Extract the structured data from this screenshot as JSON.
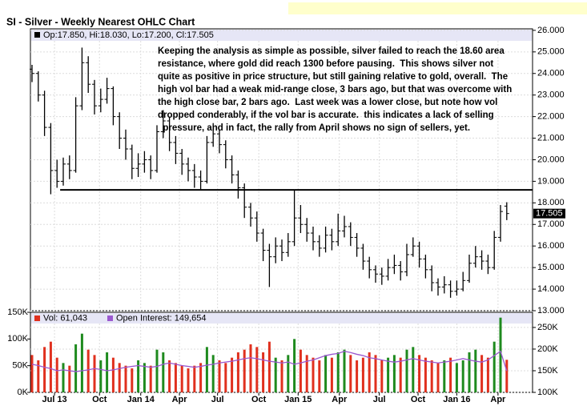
{
  "chart_data": [
    {
      "type": "ohlc",
      "title": "SI - Silver - Weekly Nearest OHLC Chart",
      "legend_text": "Op:17.850, Hi:18.030, Lo:17.200, Cl:17.505",
      "annotation": [
        "Keeping the analysis as simple as possible, silver failed to reach the 18.60 area",
        "resistance, where gold did reach 1300 before pausing.  This shows silver not",
        "quite as positive in price structure, but still gaining relative to gold, overall.  The",
        "high vol bar had a weak mid-range close, 3 bars ago, but that was overcome with",
        "the high close bar, 2 bars ago.  Last week was a lower close, but note how vol",
        "dropped conderably, if the vol bar is accurate.  this indicates a lack of selling",
        "  pressure, and in fact, the rally from April shows no sign of sellers, yet."
      ],
      "resistance": 18.6,
      "color": "#000000",
      "open": [
        24.2,
        24.0,
        23.0,
        21.5,
        19.5,
        19.0,
        19.8,
        19.5,
        22.5,
        24.5,
        23.5,
        22.5,
        22.8,
        23.3,
        22.0,
        21.0,
        20.5,
        19.6,
        19.8,
        20.0,
        19.5,
        21.3,
        21.8,
        20.8,
        20.3,
        19.8,
        19.5,
        19.2,
        19.0,
        20.8,
        21.2,
        20.7,
        20.0,
        19.3,
        18.7,
        17.8,
        17.3,
        16.6,
        15.8,
        15.5,
        16.0,
        15.7,
        16.2,
        17.3,
        17.0,
        16.6,
        16.2,
        15.9,
        16.5,
        16.2,
        16.7,
        16.9,
        16.4,
        15.9,
        15.3,
        14.9,
        14.7,
        14.6,
        15.0,
        15.1,
        14.8,
        15.6,
        16.0,
        15.4,
        14.9,
        14.3,
        14.1,
        14.2,
        13.9,
        14.0,
        14.4,
        15.2,
        15.5,
        15.3,
        15.0,
        16.4,
        17.85
      ],
      "high": [
        24.4,
        24.1,
        23.2,
        21.7,
        20.0,
        20.1,
        20.2,
        22.9,
        25.2,
        24.8,
        23.7,
        23.3,
        23.8,
        23.4,
        22.2,
        21.4,
        20.7,
        20.3,
        20.4,
        20.2,
        21.6,
        22.3,
        22.0,
        21.1,
        20.5,
        20.1,
        19.8,
        19.5,
        21.1,
        21.7,
        21.4,
        20.9,
        20.2,
        19.5,
        18.9,
        18.0,
        17.6,
        16.8,
        16.1,
        16.4,
        16.3,
        16.6,
        18.6,
        17.9,
        17.3,
        16.9,
        16.5,
        16.9,
        16.8,
        17.5,
        17.4,
        17.1,
        16.6,
        16.1,
        15.5,
        15.1,
        15.0,
        15.4,
        15.6,
        15.3,
        16.1,
        16.4,
        16.2,
        15.6,
        15.1,
        14.5,
        14.6,
        14.4,
        14.4,
        14.8,
        15.6,
        16.0,
        15.8,
        15.6,
        16.7,
        17.9,
        18.03
      ],
      "low": [
        23.6,
        22.7,
        21.1,
        18.4,
        18.7,
        18.8,
        19.1,
        19.4,
        22.3,
        23.1,
        22.1,
        22.2,
        22.6,
        21.6,
        20.5,
        20.0,
        19.1,
        19.2,
        19.4,
        19.1,
        19.4,
        21.0,
        20.4,
        19.8,
        19.3,
        19.0,
        18.7,
        18.6,
        18.9,
        20.6,
        20.3,
        19.6,
        18.9,
        18.2,
        17.3,
        16.9,
        16.2,
        15.3,
        14.1,
        15.2,
        15.3,
        15.5,
        16.0,
        16.6,
        16.2,
        15.8,
        15.5,
        15.7,
        15.8,
        16.0,
        16.4,
        16.0,
        15.5,
        14.9,
        14.5,
        14.3,
        14.2,
        14.4,
        14.7,
        14.4,
        14.6,
        15.5,
        15.0,
        14.5,
        13.9,
        13.7,
        13.8,
        13.6,
        13.7,
        13.9,
        14.3,
        15.0,
        14.9,
        14.7,
        14.9,
        16.2,
        17.2
      ],
      "close": [
        24.0,
        23.0,
        21.5,
        19.5,
        19.0,
        19.8,
        19.5,
        22.5,
        24.5,
        23.5,
        22.5,
        22.8,
        23.3,
        22.0,
        21.0,
        20.5,
        19.6,
        19.8,
        20.0,
        19.5,
        21.3,
        21.8,
        20.8,
        20.3,
        19.8,
        19.5,
        19.2,
        19.0,
        20.8,
        21.2,
        20.7,
        20.0,
        19.3,
        18.7,
        17.8,
        17.3,
        16.6,
        15.8,
        15.5,
        16.0,
        15.7,
        16.2,
        17.3,
        17.0,
        16.6,
        16.2,
        15.9,
        16.5,
        16.2,
        16.7,
        16.9,
        16.4,
        15.9,
        15.3,
        14.9,
        14.7,
        14.6,
        15.0,
        15.1,
        14.8,
        15.6,
        16.0,
        15.4,
        14.9,
        14.3,
        14.1,
        14.2,
        13.9,
        14.0,
        14.4,
        15.2,
        15.5,
        15.3,
        15.0,
        16.4,
        17.6,
        17.505
      ],
      "ylim": [
        13,
        26.07
      ],
      "yticks": [
        {
          "value": 13,
          "label": "13.000"
        },
        {
          "value": 14,
          "label": "14.000"
        },
        {
          "value": 15,
          "label": "15.000"
        },
        {
          "value": 16,
          "label": "16.000"
        },
        {
          "value": 17,
          "label": "17.000"
        },
        {
          "value": 18,
          "label": "18.000"
        },
        {
          "value": 19,
          "label": "19.000"
        },
        {
          "value": 20,
          "label": "20.000"
        },
        {
          "value": 21,
          "label": "21.000"
        },
        {
          "value": 22,
          "label": "22.000"
        },
        {
          "value": 23,
          "label": "23.000"
        },
        {
          "value": 24,
          "label": "24.000"
        },
        {
          "value": 25,
          "label": "25.000"
        },
        {
          "value": 26,
          "label": "26.000"
        }
      ]
    },
    {
      "type": "bar",
      "up_color": "#1e8a1e",
      "down_color": "#e0301e",
      "series": [
        {
          "name": "Vol: 61,043",
          "color": "#e0301e",
          "values": [
            70000,
            60000,
            85000,
            95000,
            65000,
            55000,
            50000,
            90000,
            110000,
            80000,
            70000,
            60000,
            75000,
            65000,
            55000,
            50000,
            45000,
            60000,
            55000,
            50000,
            80000,
            75000,
            60000,
            55000,
            50000,
            45000,
            50000,
            55000,
            85000,
            70000,
            60000,
            55000,
            65000,
            75000,
            80000,
            90000,
            85000,
            75000,
            95000,
            65000,
            60000,
            70000,
            100000,
            80000,
            70000,
            65000,
            60000,
            70000,
            65000,
            75000,
            80000,
            70000,
            60000,
            65000,
            75000,
            70000,
            60000,
            65000,
            70000,
            65000,
            80000,
            85000,
            70000,
            65000,
            60000,
            55000,
            60000,
            65000,
            55000,
            60000,
            75000,
            80000,
            70000,
            65000,
            95000,
            140000,
            61043
          ]
        },
        {
          "name": "Open Interest: 149,654",
          "color": "#9b59d0",
          "axis": "y2",
          "values": [
            165000,
            162000,
            158000,
            155000,
            150000,
            152000,
            150000,
            148000,
            150000,
            152000,
            155000,
            153000,
            150000,
            152000,
            155000,
            158000,
            160000,
            162000,
            160000,
            158000,
            160000,
            165000,
            168000,
            165000,
            162000,
            160000,
            158000,
            160000,
            163000,
            165000,
            168000,
            170000,
            172000,
            175000,
            178000,
            180000,
            178000,
            175000,
            172000,
            170000,
            168000,
            170000,
            165000,
            168000,
            172000,
            175000,
            180000,
            185000,
            188000,
            190000,
            195000,
            192000,
            188000,
            185000,
            180000,
            178000,
            175000,
            172000,
            170000,
            172000,
            175000,
            178000,
            175000,
            172000,
            170000,
            168000,
            170000,
            172000,
            175000,
            178000,
            175000,
            172000,
            170000,
            175000,
            185000,
            195000,
            149654
          ]
        }
      ],
      "ylim": [
        0,
        150000
      ],
      "yticks": [
        {
          "value": 0,
          "label": "0K"
        },
        {
          "value": 50000,
          "label": "50K"
        },
        {
          "value": 100000,
          "label": "100K"
        },
        {
          "value": 150000,
          "label": "150K"
        }
      ],
      "y2lim": [
        100000,
        285000
      ],
      "y2ticks": [
        {
          "value": 100000,
          "label": "100K"
        },
        {
          "value": 150000,
          "label": "150K"
        },
        {
          "value": 200000,
          "label": "200K"
        },
        {
          "value": 250000,
          "label": "250K"
        }
      ],
      "xticks": [
        {
          "value": 3.6,
          "label": "Jul 13"
        },
        {
          "value": 10.8,
          "label": "Oct"
        },
        {
          "value": 17.4,
          "label": "Jan 14"
        },
        {
          "value": 23.6,
          "label": "Apr"
        },
        {
          "value": 29.7,
          "label": "Jul"
        },
        {
          "value": 36.3,
          "label": "Oct"
        },
        {
          "value": 42.6,
          "label": "Jan 15"
        },
        {
          "value": 49.2,
          "label": "Apr"
        },
        {
          "value": 55.6,
          "label": "Jul"
        },
        {
          "value": 61.8,
          "label": "Oct"
        },
        {
          "value": 68,
          "label": "Jan 16"
        },
        {
          "value": 74.6,
          "label": "Apr"
        }
      ]
    }
  ]
}
